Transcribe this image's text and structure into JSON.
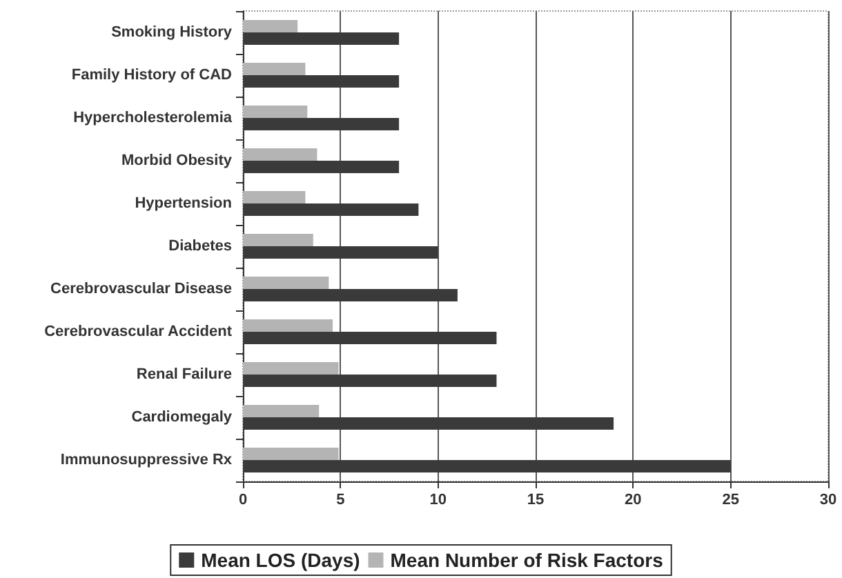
{
  "chart_data": {
    "type": "bar",
    "orientation": "horizontal",
    "categories": [
      "Smoking History",
      "Family History of CAD",
      "Hypercholesterolemia",
      "Morbid Obesity",
      "Hypertension",
      "Diabetes",
      "Cerebrovascular Disease",
      "Cerebrovascular Accident",
      "Renal Failure",
      "Cardiomegaly",
      "Immunosuppressive Rx"
    ],
    "series": [
      {
        "name": "Mean LOS (Days)",
        "color": "#3a3a3a",
        "values": [
          8,
          8,
          8,
          8,
          9,
          10,
          11,
          13,
          13,
          19,
          25
        ]
      },
      {
        "name": "Mean Number of Risk Factors",
        "color": "#b4b4b4",
        "values": [
          2.8,
          3.2,
          3.3,
          3.8,
          3.2,
          3.6,
          4.4,
          4.6,
          4.9,
          3.9,
          4.9
        ]
      }
    ],
    "xlim": [
      0,
      30
    ],
    "xticks": [
      0,
      5,
      10,
      15,
      20,
      25,
      30
    ],
    "grid": "x",
    "legend": "bottom"
  }
}
